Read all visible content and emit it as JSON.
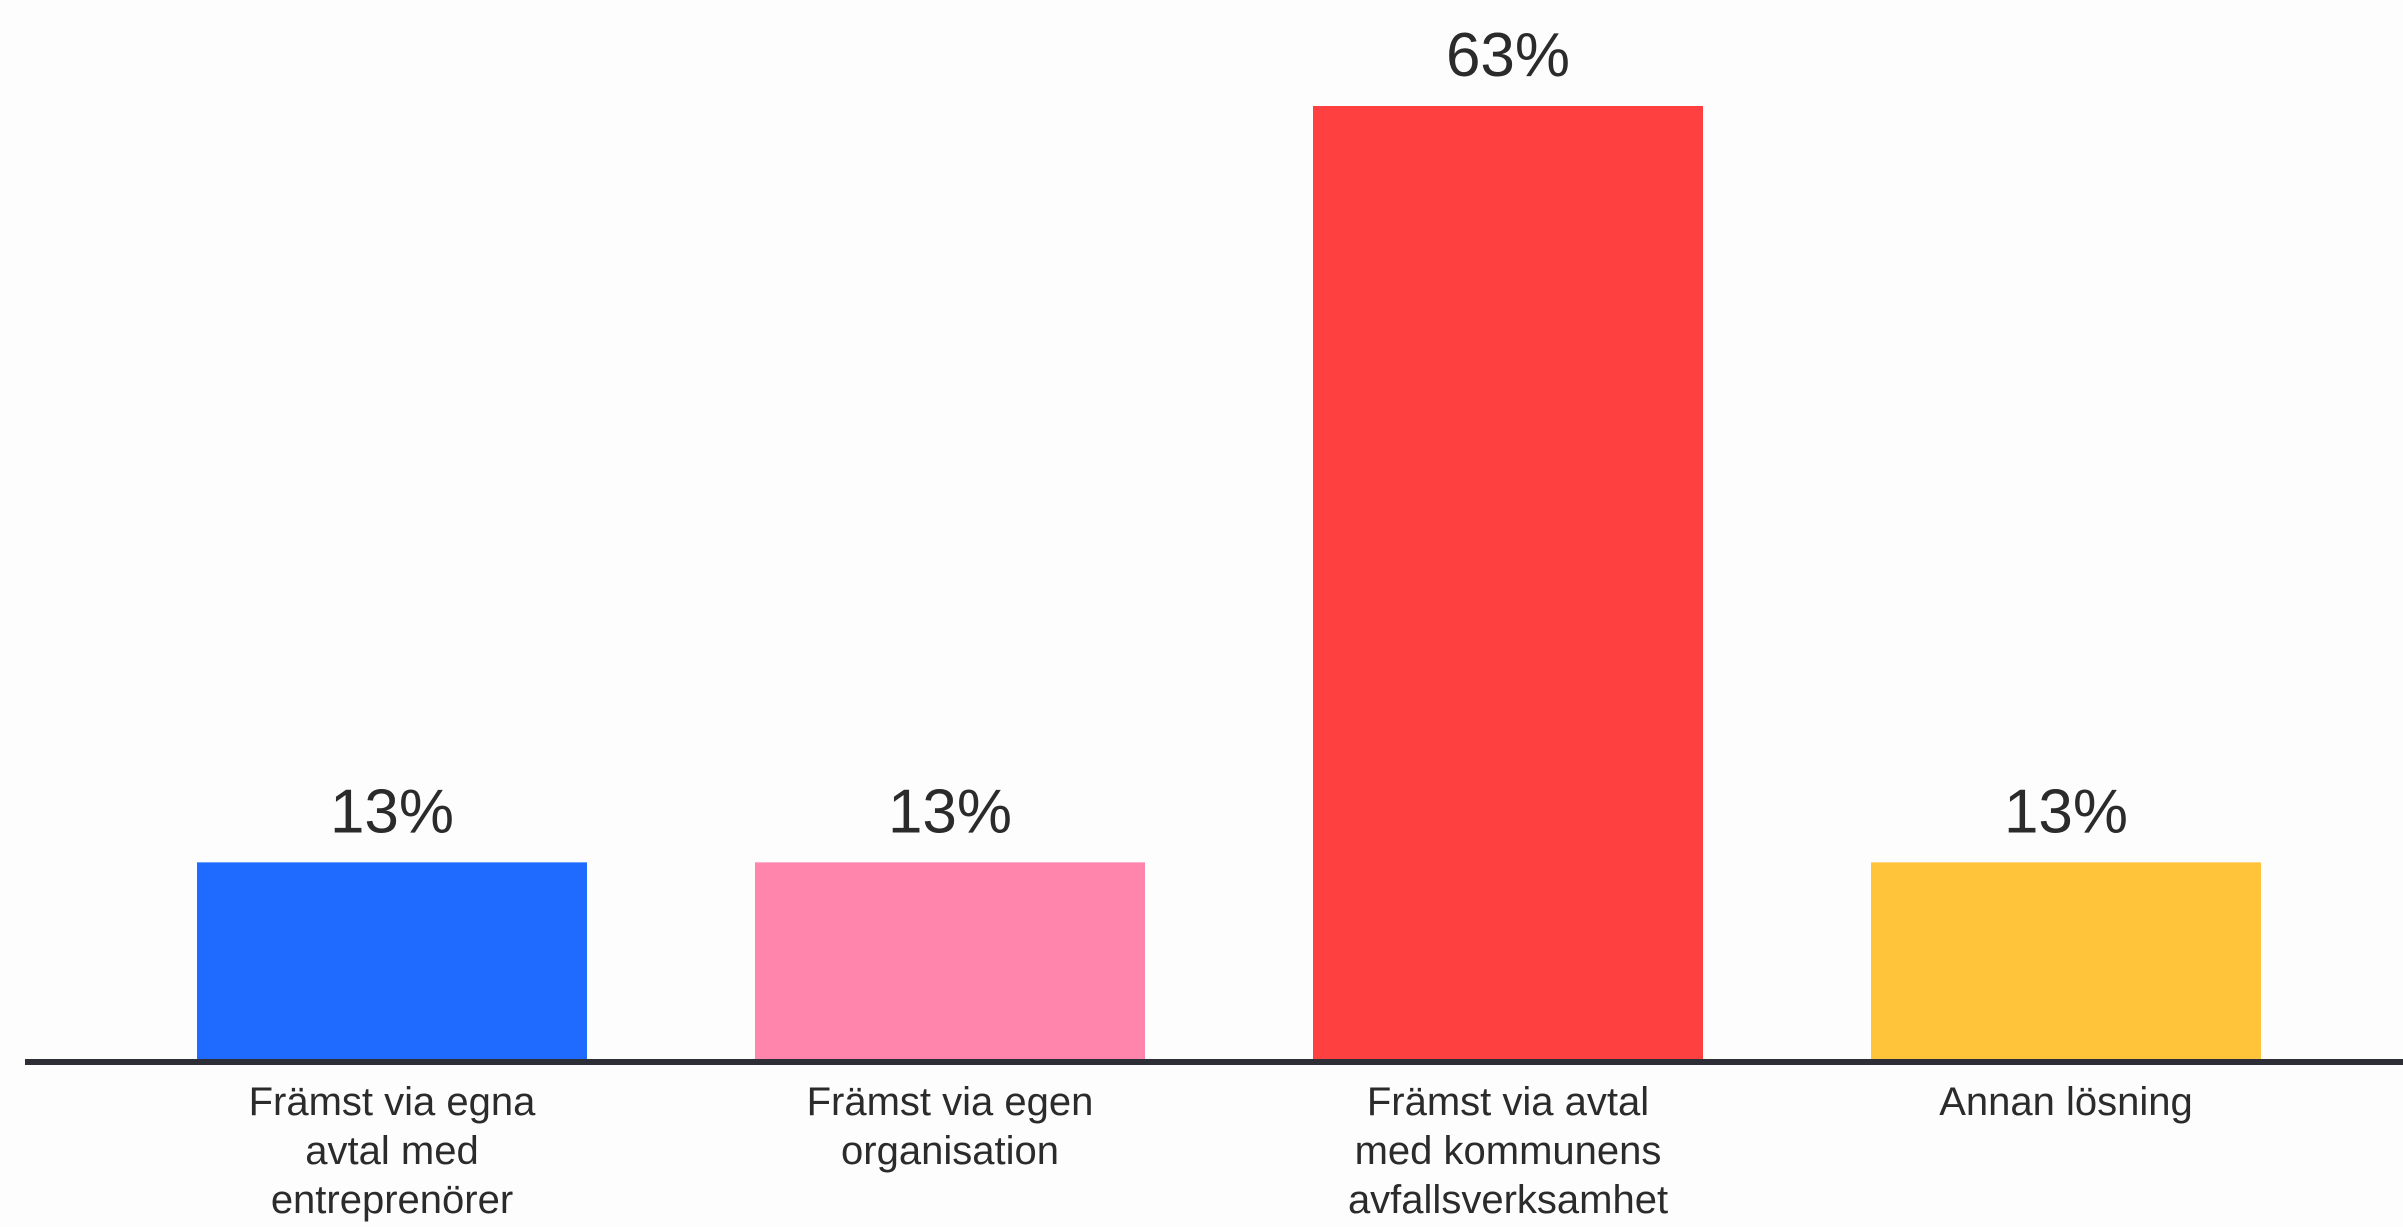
{
  "chart_data": {
    "type": "bar",
    "categories": [
      [
        "Främst via egna",
        "avtal med",
        "entreprenörer"
      ],
      [
        "Främst via egen",
        "organisation"
      ],
      [
        "Främst via avtal",
        "med kommunens",
        "avfallsverksamhet"
      ],
      [
        "Annan lösning"
      ]
    ],
    "values": [
      13,
      13,
      63,
      13
    ],
    "value_labels": [
      "13%",
      "13%",
      "63%",
      "13%"
    ],
    "colors": [
      "#1f6bff",
      "#ff85ad",
      "#ff4040",
      "#ffc43a"
    ],
    "ylim": [
      0,
      63
    ],
    "grid": false,
    "title": "",
    "xlabel": "",
    "ylabel": ""
  }
}
